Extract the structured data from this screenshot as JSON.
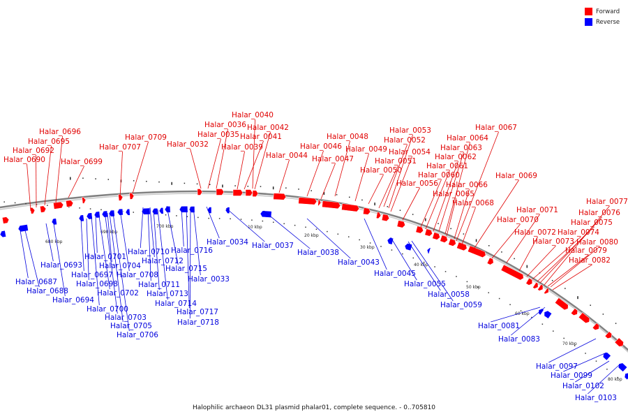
{
  "legend": {
    "forward_label": "Forward",
    "reverse_label": "Reverse",
    "forward_color": "#ff0000",
    "reverse_color": "#0000ff"
  },
  "colors": {
    "backbone": "#7a7a7a",
    "forward_label": "#e00000",
    "reverse_label": "#0000dd"
  },
  "caption": "Halophilic archaeon DL31 plasmid phalar01, complete sequence. - 0..705810",
  "scale_ticks": [
    "680 kbp",
    "690 kbp",
    "700 kbp",
    "10 kbp",
    "20 kbp",
    "30 kbp",
    "40 kbp",
    "50 kbp",
    "60 kbp",
    "70 kbp",
    "80 kbp"
  ],
  "forward_genes": [
    "Halar_0690",
    "Halar_0692",
    "Halar_0695",
    "Halar_0696",
    "Halar_0699",
    "Halar_0707",
    "Halar_0709",
    "Halar_0032",
    "Halar_0035",
    "Halar_0036",
    "Halar_0039",
    "Halar_0040",
    "Halar_0041",
    "Halar_0042",
    "Halar_0044",
    "Halar_0046",
    "Halar_0047",
    "Halar_0048",
    "Halar_0049",
    "Halar_0050",
    "Halar_0051",
    "Halar_0052",
    "Halar_0053",
    "Halar_0054",
    "Halar_0056",
    "Halar_0060",
    "Halar_0061",
    "Halar_0062",
    "Halar_0063",
    "Halar_0064",
    "Halar_0065",
    "Halar_0066",
    "Halar_0067",
    "Halar_0068",
    "Halar_0069",
    "Halar_0070",
    "Halar_0071",
    "Halar_0072",
    "Halar_0073",
    "Halar_0074",
    "Halar_0075",
    "Halar_0076",
    "Halar_0077",
    "Halar_0079",
    "Halar_0080",
    "Halar_0082"
  ],
  "reverse_genes": [
    "Halar_0687",
    "Halar_0688",
    "Halar_0693",
    "Halar_0694",
    "Halar_0697",
    "Halar_0698",
    "Halar_0700",
    "Halar_0701",
    "Halar_0702",
    "Halar_0703",
    "Halar_0704",
    "Halar_0705",
    "Halar_0706",
    "Halar_0708",
    "Halar_0710",
    "Halar_0711",
    "Halar_0712",
    "Halar_0713",
    "Halar_0714",
    "Halar_0715",
    "Halar_0716",
    "Halar_0717",
    "Halar_0718",
    "Halar_0033",
    "Halar_0034",
    "Halar_0037",
    "Halar_0038",
    "Halar_0043",
    "Halar_0045",
    "Halar_0055",
    "Halar_0058",
    "Halar_0059",
    "Halar_0081",
    "Halar_0083",
    "Halar_0097",
    "Halar_0099",
    "Halar_0102",
    "Halar_0103"
  ]
}
